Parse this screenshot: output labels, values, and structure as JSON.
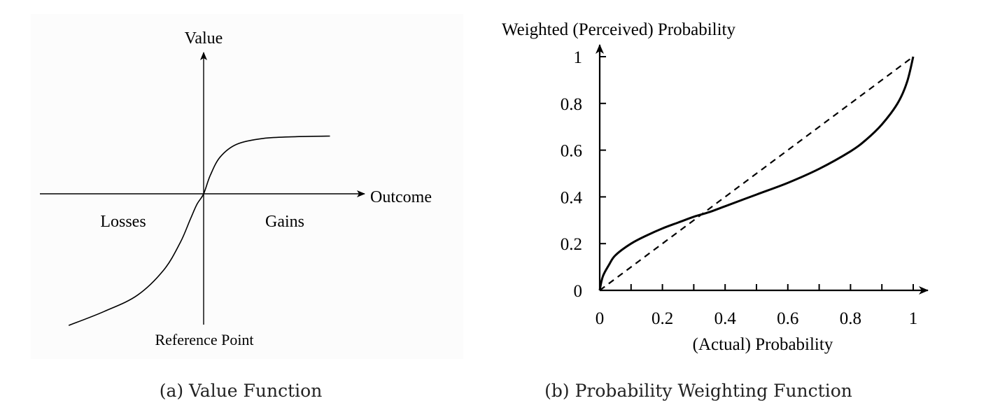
{
  "chart_data": [
    {
      "type": "line",
      "caption": "(a) Value Function",
      "ylabel": "Value",
      "xlabel": "Outcome",
      "annotations": {
        "losses": "Losses",
        "gains": "Gains",
        "reference": "Reference Point"
      },
      "axes_ticks": false,
      "grid": false,
      "series": [
        {
          "style": "solid",
          "x": [
            -2.03,
            -1.5,
            -1.0,
            -0.6,
            -0.35,
            -0.2,
            -0.1,
            0,
            0.1,
            0.25,
            0.5,
            0.9,
            1.4,
            1.9
          ],
          "y": [
            -1.14,
            -1.02,
            -0.88,
            -0.66,
            -0.42,
            -0.22,
            -0.09,
            0,
            0.16,
            0.32,
            0.43,
            0.48,
            0.495,
            0.5
          ]
        }
      ]
    },
    {
      "type": "line",
      "caption": "(b) Probability Weighting Function",
      "ylabel": "Weighted (Perceived) Probability",
      "xlabel": "(Actual) Probability",
      "xlim": [
        0,
        1
      ],
      "ylim": [
        0,
        1
      ],
      "xticks": [
        "0",
        "0.2",
        "0.4",
        "0.6",
        "0.8",
        "1"
      ],
      "yticks": [
        "0",
        "0.2",
        "0.4",
        "0.6",
        "0.8",
        "1"
      ],
      "minor_xticks": [
        0.1,
        0.3,
        0.5,
        0.7,
        0.9
      ],
      "grid": false,
      "series": [
        {
          "style": "dashed",
          "x": [
            0,
            1
          ],
          "y": [
            0,
            1
          ]
        },
        {
          "style": "solid",
          "x": [
            0,
            0.01,
            0.03,
            0.05,
            0.1,
            0.15,
            0.2,
            0.25,
            0.3,
            0.35,
            0.4,
            0.5,
            0.6,
            0.7,
            0.8,
            0.85,
            0.9,
            0.95,
            0.98,
            1
          ],
          "y": [
            0,
            0.06,
            0.11,
            0.15,
            0.2,
            0.235,
            0.265,
            0.29,
            0.315,
            0.335,
            0.36,
            0.41,
            0.46,
            0.52,
            0.595,
            0.645,
            0.71,
            0.8,
            0.89,
            1
          ]
        }
      ]
    }
  ]
}
